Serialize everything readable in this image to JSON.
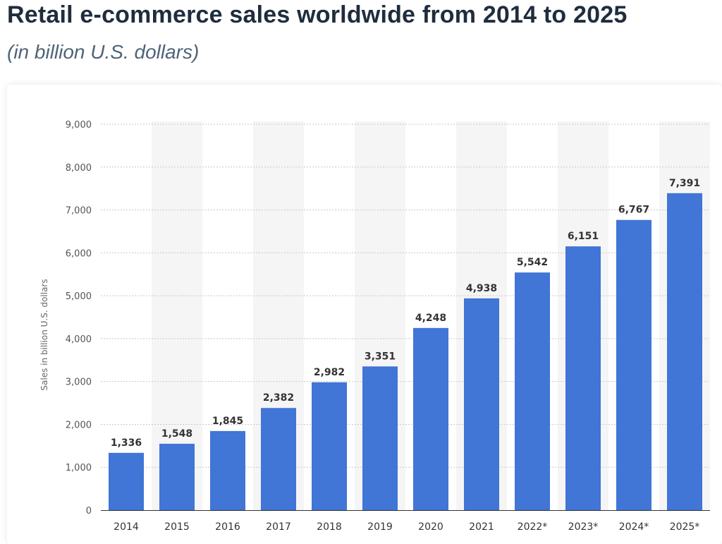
{
  "header": {
    "title": "Retail e-commerce sales worldwide from 2014 to 2025",
    "subtitle": "(in billion U.S. dollars)"
  },
  "chart_data": {
    "type": "bar",
    "title": "Retail e-commerce sales worldwide from 2014 to 2025",
    "subtitle": "(in billion U.S. dollars)",
    "categories": [
      "2014",
      "2015",
      "2016",
      "2017",
      "2018",
      "2019",
      "2020",
      "2021",
      "2022*",
      "2023*",
      "2024*",
      "2025*"
    ],
    "values": [
      1336,
      1548,
      1845,
      2382,
      2982,
      3351,
      4248,
      4938,
      5542,
      6151,
      6767,
      7391
    ],
    "value_labels": [
      "1,336",
      "1,548",
      "1,845",
      "2,382",
      "2,982",
      "3,351",
      "4,248",
      "4,938",
      "5,542",
      "6,151",
      "6,767",
      "7,391"
    ],
    "xlabel": "",
    "ylabel": "Sales in billion U.S. dollars",
    "ylim": [
      0,
      9000
    ],
    "yticks": [
      0,
      1000,
      2000,
      3000,
      4000,
      5000,
      6000,
      7000,
      8000,
      9000
    ],
    "ytick_labels": [
      "0",
      "1,000",
      "2,000",
      "3,000",
      "4,000",
      "5,000",
      "6,000",
      "7,000",
      "8,000",
      "9,000"
    ],
    "grid": true,
    "colors": {
      "bar": "#4175d6",
      "band": "#f5f5f5",
      "grid": "#c8c8c8",
      "axis": "#333333"
    }
  }
}
